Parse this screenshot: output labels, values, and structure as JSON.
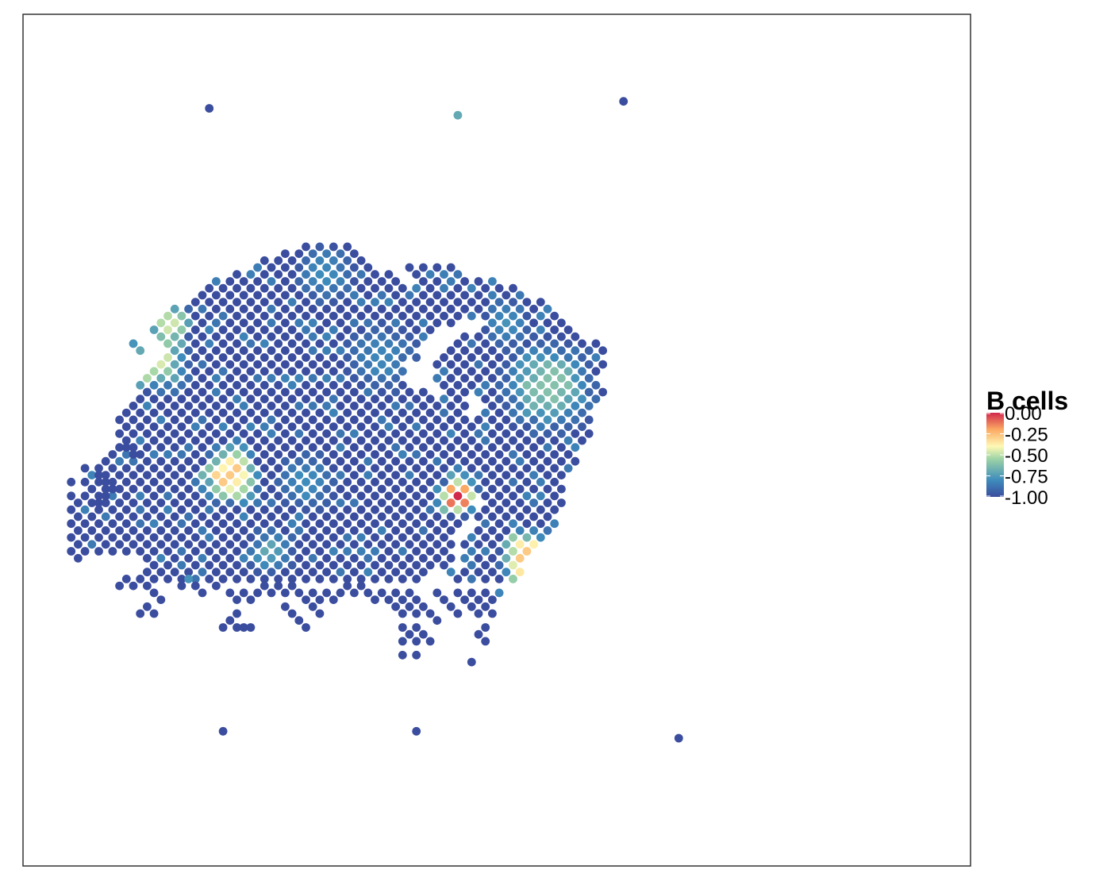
{
  "chart_data": {
    "type": "scatter",
    "subtype": "spatial spot plot",
    "title": "",
    "xlabel": "",
    "ylabel": "",
    "axes_visible": false,
    "grid": false,
    "panel_border": true,
    "color_scale": {
      "palette": "Spectral",
      "colors": [
        "#3B4D9E",
        "#3E8CBC",
        "#9DD3A6",
        "#FEF9B5",
        "#FBAA63",
        "#D1294B"
      ],
      "min": -1.0,
      "max": 0.0
    },
    "legend": {
      "title": "B cells",
      "placement": "right",
      "ticks": [
        "0.00",
        "-0.25",
        "-0.50",
        "-0.75",
        "-1.00"
      ],
      "tick_values": [
        0.0,
        -0.25,
        -0.5,
        -0.75,
        -1.0
      ]
    },
    "point_rule": {
      "description": "hexagonal spot lattice: odd columns occupy rows 1,3,5...; even columns rows 0,2,4...",
      "default_value": -1.0,
      "col_range": [
        0,
        98
      ],
      "row_range": [
        0,
        77
      ]
    },
    "row_spans": [
      [
        13,
        [
          35,
          41
        ]
      ],
      [
        14,
        [
          31,
          43
        ]
      ],
      [
        15,
        [
          29,
          44
        ]
      ],
      [
        16,
        [
          27,
          45
        ],
        [
          50,
          56
        ]
      ],
      [
        17,
        [
          25,
          47
        ],
        [
          50,
          58
        ]
      ],
      [
        18,
        [
          22,
          48
        ],
        [
          51,
          63
        ]
      ],
      [
        19,
        [
          20,
          66
        ]
      ],
      [
        20,
        [
          19,
          67
        ]
      ],
      [
        21,
        [
          18,
          69
        ]
      ],
      [
        22,
        [
          16,
          70
        ]
      ],
      [
        23,
        [
          15,
          71
        ]
      ],
      [
        24,
        [
          14,
          56
        ],
        [
          62,
          72
        ]
      ],
      [
        25,
        [
          13,
          53
        ],
        [
          60,
          73
        ]
      ],
      [
        26,
        [
          13,
          53
        ],
        [
          58,
          74
        ]
      ],
      [
        27,
        [
          14,
          51
        ],
        [
          56,
          77
        ]
      ],
      [
        28,
        [
          15,
          51
        ],
        [
          55,
          78
        ]
      ],
      [
        29,
        [
          15,
          51
        ],
        [
          55,
          78
        ]
      ],
      [
        30,
        [
          14,
          49
        ],
        [
          54,
          78
        ]
      ],
      [
        31,
        [
          12,
          49
        ],
        [
          54,
          77
        ]
      ],
      [
        32,
        [
          12,
          49
        ],
        [
          54,
          77
        ]
      ],
      [
        33,
        [
          11,
          50
        ],
        [
          54,
          77
        ]
      ],
      [
        34,
        [
          11,
          52
        ],
        [
          55,
          78
        ]
      ],
      [
        35,
        [
          10,
          58
        ],
        [
          61,
          78
        ]
      ],
      [
        36,
        [
          10,
          59
        ],
        [
          61,
          77
        ]
      ],
      [
        37,
        [
          9,
          58
        ],
        [
          60,
          76
        ]
      ],
      [
        38,
        [
          8,
          58
        ],
        [
          60,
          76
        ]
      ],
      [
        39,
        [
          8,
          58
        ],
        [
          59,
          76
        ]
      ],
      [
        40,
        [
          8,
          76
        ]
      ],
      [
        41,
        [
          8,
          76
        ]
      ],
      [
        42,
        [
          7,
          75
        ]
      ],
      [
        43,
        [
          7,
          74
        ]
      ],
      [
        44,
        [
          5,
          74
        ]
      ],
      [
        45,
        [
          3,
          73
        ]
      ],
      [
        46,
        [
          3,
          73
        ]
      ],
      [
        47,
        [
          3,
          72
        ]
      ],
      [
        48,
        [
          3,
          72
        ]
      ],
      [
        49,
        [
          3,
          72
        ]
      ],
      [
        50,
        [
          3,
          59
        ],
        [
          61,
          72
        ]
      ],
      [
        51,
        [
          3,
          59
        ],
        [
          61,
          72
        ]
      ],
      [
        52,
        [
          3,
          58
        ],
        [
          60,
          71
        ]
      ],
      [
        53,
        [
          3,
          57
        ],
        [
          60,
          71
        ]
      ],
      [
        54,
        [
          3,
          57
        ],
        [
          59,
          70
        ]
      ],
      [
        55,
        [
          3,
          56
        ],
        [
          59,
          69
        ]
      ],
      [
        56,
        [
          3,
          56
        ],
        [
          58,
          68
        ]
      ],
      [
        57,
        [
          6,
          56
        ],
        [
          58,
          68
        ]
      ],
      [
        58,
        [
          12,
          56
        ],
        [
          58,
          67
        ]
      ],
      [
        59,
        [
          12,
          56
        ],
        [
          59,
          66
        ]
      ],
      [
        60,
        [
          12,
          52
        ],
        [
          55,
          66
        ]
      ],
      [
        61,
        [
          13,
          52
        ],
        [
          56,
          65
        ]
      ]
    ],
    "extra_spots": [
      [
        81,
        -8,
        -1.0
      ],
      [
        21,
        -7,
        -1.0
      ],
      [
        57,
        -6,
        -0.72
      ],
      [
        10,
        27,
        -0.78
      ],
      [
        11,
        28,
        -0.72
      ],
      [
        9,
        42,
        -1.0
      ],
      [
        10,
        43,
        -1.0
      ],
      [
        8,
        44,
        -1.0
      ],
      [
        5,
        46,
        -1.0
      ],
      [
        6,
        47,
        -1.0
      ],
      [
        7,
        48,
        -1.0
      ],
      [
        6,
        49,
        -1.0
      ],
      [
        5,
        50,
        -1.0
      ],
      [
        1,
        47,
        -1.0
      ],
      [
        1,
        49,
        -1.0
      ],
      [
        2,
        50,
        -1.0
      ],
      [
        1,
        51,
        -1.0
      ],
      [
        2,
        52,
        -1.0
      ],
      [
        1,
        53,
        -1.0
      ],
      [
        2,
        54,
        -1.0
      ],
      [
        1,
        55,
        -1.0
      ],
      [
        2,
        56,
        -1.0
      ],
      [
        1,
        57,
        -1.0
      ],
      [
        2,
        58,
        -1.0
      ],
      [
        3,
        57,
        -1.0
      ],
      [
        5,
        57,
        -1.0
      ],
      [
        8,
        62,
        -1.0
      ],
      [
        9,
        61,
        -1.0
      ],
      [
        10,
        62,
        -1.0
      ],
      [
        11,
        61,
        -1.0
      ],
      [
        12,
        62,
        -1.0
      ],
      [
        17,
        62,
        -1.0
      ],
      [
        18,
        61,
        -0.78
      ],
      [
        19,
        62,
        -1.0
      ],
      [
        20,
        63,
        -1.0
      ],
      [
        22,
        62,
        -1.0
      ],
      [
        13,
        63,
        -1.0
      ],
      [
        14,
        64,
        -1.0
      ],
      [
        24,
        63,
        -1.0
      ],
      [
        25,
        64,
        -1.0
      ],
      [
        26,
        63,
        -1.0
      ],
      [
        27,
        64,
        -1.0
      ],
      [
        28,
        63,
        -1.0
      ],
      [
        29,
        62,
        -1.0
      ],
      [
        30,
        63,
        -1.0
      ],
      [
        31,
        62,
        -1.0
      ],
      [
        32,
        63,
        -1.0
      ],
      [
        33,
        62,
        -1.0
      ],
      [
        34,
        63,
        -1.0
      ],
      [
        35,
        64,
        -1.0
      ],
      [
        36,
        63,
        -1.0
      ],
      [
        37,
        64,
        -1.0
      ],
      [
        38,
        63,
        -1.0
      ],
      [
        39,
        64,
        -1.0
      ],
      [
        40,
        63,
        -1.0
      ],
      [
        41,
        62,
        -1.0
      ],
      [
        42,
        63,
        -1.0
      ],
      [
        43,
        62,
        -1.0
      ],
      [
        44,
        63,
        -1.0
      ],
      [
        45,
        64,
        -1.0
      ],
      [
        46,
        63,
        -1.0
      ],
      [
        47,
        64,
        -1.0
      ],
      [
        48,
        63,
        -1.0
      ],
      [
        49,
        64,
        -1.0
      ],
      [
        50,
        63,
        -1.0
      ],
      [
        51,
        64,
        -1.0
      ],
      [
        54,
        63,
        -1.0
      ],
      [
        55,
        64,
        -1.0
      ],
      [
        57,
        63,
        -1.0
      ],
      [
        58,
        64,
        -1.0
      ],
      [
        59,
        63,
        -1.0
      ],
      [
        60,
        64,
        -1.0
      ],
      [
        61,
        63,
        -1.0
      ],
      [
        62,
        64,
        -1.0
      ],
      [
        63,
        63,
        -0.82
      ],
      [
        12,
        65,
        -1.0
      ],
      [
        11,
        66,
        -1.0
      ],
      [
        13,
        66,
        -1.0
      ],
      [
        25,
        66,
        -1.0
      ],
      [
        24,
        67,
        -1.0
      ],
      [
        23,
        68,
        -1.0
      ],
      [
        25,
        68,
        -1.0
      ],
      [
        26,
        68,
        -1.0
      ],
      [
        27,
        68,
        -1.0
      ],
      [
        32,
        65,
        -1.0
      ],
      [
        33,
        66,
        -1.0
      ],
      [
        34,
        67,
        -1.0
      ],
      [
        35,
        68,
        -1.0
      ],
      [
        36,
        65,
        -1.0
      ],
      [
        37,
        66,
        -1.0
      ],
      [
        48,
        65,
        -1.0
      ],
      [
        49,
        66,
        -1.0
      ],
      [
        50,
        65,
        -1.0
      ],
      [
        51,
        66,
        -1.0
      ],
      [
        52,
        65,
        -1.0
      ],
      [
        49,
        68,
        -1.0
      ],
      [
        51,
        68,
        -1.0
      ],
      [
        53,
        66,
        -1.0
      ],
      [
        54,
        67,
        -1.0
      ],
      [
        56,
        65,
        -1.0
      ],
      [
        57,
        66,
        -1.0
      ],
      [
        59,
        65,
        -1.0
      ],
      [
        60,
        66,
        -1.0
      ],
      [
        61,
        65,
        -1.0
      ],
      [
        62,
        66,
        -1.0
      ],
      [
        49,
        70,
        -1.0
      ],
      [
        50,
        69,
        -1.0
      ],
      [
        51,
        70,
        -1.0
      ],
      [
        52,
        69,
        -1.0
      ],
      [
        53,
        70,
        -1.0
      ],
      [
        49,
        72,
        -1.0
      ],
      [
        51,
        72,
        -1.0
      ],
      [
        61,
        68,
        -1.0
      ],
      [
        60,
        69,
        -1.0
      ],
      [
        61,
        70,
        -1.0
      ],
      [
        59,
        73,
        -1.0
      ],
      [
        23,
        83,
        -1.0
      ],
      [
        51,
        83,
        -1.0
      ],
      [
        89,
        84,
        -1.0
      ]
    ],
    "value_hotspots": [
      {
        "center": [
          13,
          29
        ],
        "value": -0.42,
        "radius": 6.0
      },
      {
        "center": [
          15,
          24
        ],
        "value": -0.5,
        "radius": 4.0
      },
      {
        "center": [
          24,
          46
        ],
        "value": -0.28,
        "radius": 5.0
      },
      {
        "center": [
          57,
          49
        ],
        "value": 0.0,
        "radius": 3.4
      },
      {
        "center": [
          67,
          58
        ],
        "value": -0.28,
        "radius": 5.0
      },
      {
        "center": [
          70,
          33
        ],
        "value": -0.65,
        "radius": 8.0
      },
      {
        "center": [
          64,
          24
        ],
        "value": -0.78,
        "radius": 4.0
      },
      {
        "center": [
          46,
          29
        ],
        "value": -0.82,
        "radius": 6.0
      },
      {
        "center": [
          38,
          17
        ],
        "value": -0.8,
        "radius": 5.0
      },
      {
        "center": [
          30,
          57
        ],
        "value": -0.72,
        "radius": 4.0
      },
      {
        "center": [
          35,
          47
        ],
        "value": -0.8,
        "radius": 5.0
      }
    ]
  }
}
